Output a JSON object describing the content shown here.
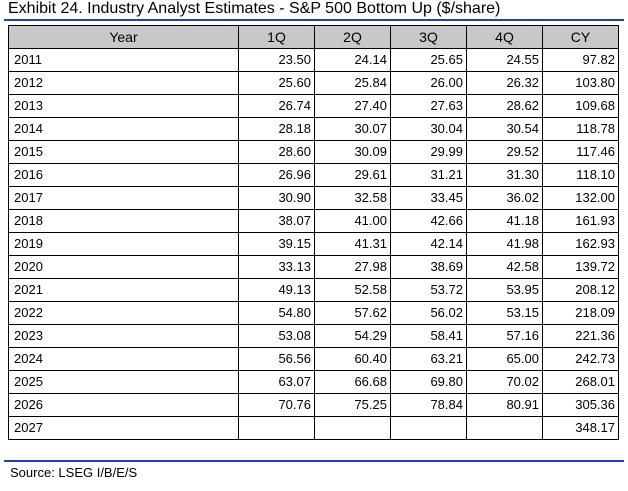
{
  "title": "Exhibit 24. Industry Analyst Estimates - S&P 500 Bottom Up ($/share)",
  "table": {
    "columns": [
      "Year",
      "1Q",
      "2Q",
      "3Q",
      "4Q",
      "CY"
    ],
    "rows": [
      [
        "2011",
        "23.50",
        "24.14",
        "25.65",
        "24.55",
        "97.82"
      ],
      [
        "2012",
        "25.60",
        "25.84",
        "26.00",
        "26.32",
        "103.80"
      ],
      [
        "2013",
        "26.74",
        "27.40",
        "27.63",
        "28.62",
        "109.68"
      ],
      [
        "2014",
        "28.18",
        "30.07",
        "30.04",
        "30.54",
        "118.78"
      ],
      [
        "2015",
        "28.60",
        "30.09",
        "29.99",
        "29.52",
        "117.46"
      ],
      [
        "2016",
        "26.96",
        "29.61",
        "31.21",
        "31.30",
        "118.10"
      ],
      [
        "2017",
        "30.90",
        "32.58",
        "33.45",
        "36.02",
        "132.00"
      ],
      [
        "2018",
        "38.07",
        "41.00",
        "42.66",
        "41.18",
        "161.93"
      ],
      [
        "2019",
        "39.15",
        "41.31",
        "42.14",
        "41.98",
        "162.93"
      ],
      [
        "2020",
        "33.13",
        "27.98",
        "38.69",
        "42.58",
        "139.72"
      ],
      [
        "2021",
        "49.13",
        "52.58",
        "53.72",
        "53.95",
        "208.12"
      ],
      [
        "2022",
        "54.80",
        "57.62",
        "56.02",
        "53.15",
        "218.09"
      ],
      [
        "2023",
        "53.08",
        "54.29",
        "58.41",
        "57.16",
        "221.36"
      ],
      [
        "2024",
        "56.56",
        "60.40",
        "63.21",
        "65.00",
        "242.73"
      ],
      [
        "2025",
        "63.07",
        "66.68",
        "69.80",
        "70.02",
        "268.01"
      ],
      [
        "2026",
        "70.76",
        "75.25",
        "78.84",
        "80.91",
        "305.36"
      ],
      [
        "2027",
        "",
        "",
        "",
        "",
        "348.17"
      ]
    ]
  },
  "source": "Source: LSEG I/B/E/S",
  "colors": {
    "header_background": "#c8c8c8",
    "rule": "#1f3fbf",
    "border": "#000000"
  }
}
